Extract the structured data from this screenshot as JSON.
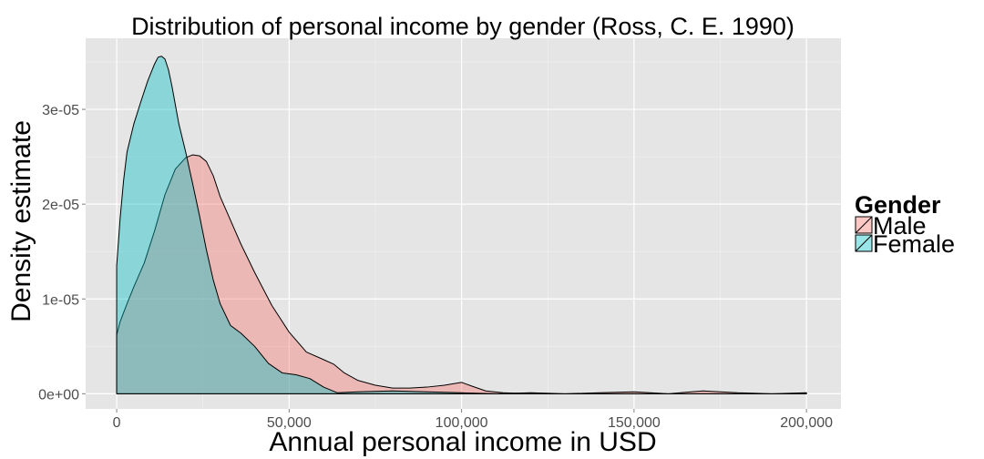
{
  "chart_data": {
    "type": "area",
    "title": "Distribution of personal income by gender (Ross, C. E. 1990)",
    "xlabel": "Annual personal income in USD",
    "ylabel": "Density estimate",
    "xlim": [
      -9000,
      210000
    ],
    "ylim": [
      -1.6e-06,
      3.75e-05
    ],
    "x_ticks": [
      0,
      50000,
      100000,
      150000,
      200000
    ],
    "x_tick_labels": [
      "0",
      "50,000",
      "100,000",
      "150,000",
      "200,000"
    ],
    "y_ticks": [
      0,
      1e-05,
      2e-05,
      3e-05
    ],
    "y_tick_labels": [
      "0e+00",
      "1e-05",
      "2e-05",
      "3e-05"
    ],
    "grid": true,
    "background": "#e5e5e5",
    "grid_color": "#ffffff",
    "legend": {
      "title": "Gender",
      "position": "right",
      "entries": [
        "Male",
        "Female"
      ]
    },
    "series": [
      {
        "name": "Male",
        "color": "#f8766d",
        "opacity": 0.4,
        "x": [
          0,
          1000,
          3000,
          5000,
          8000,
          11000,
          14000,
          17000,
          20000,
          22000,
          24000,
          26000,
          28000,
          30000,
          33000,
          36000,
          40000,
          45000,
          50000,
          55000,
          60000,
          63000,
          66000,
          70000,
          75000,
          80000,
          85000,
          90000,
          95000,
          100000,
          103000,
          107000,
          112000,
          120000,
          130000,
          140000,
          150000,
          160000,
          170000,
          175000,
          180000,
          190000,
          200000
        ],
        "y": [
          6.2e-06,
          7.6e-06,
          9.5e-06,
          1.13e-05,
          1.38e-05,
          1.72e-05,
          2.1e-05,
          2.37e-05,
          2.49e-05,
          2.52e-05,
          2.51e-05,
          2.45e-05,
          2.3e-05,
          2.08e-05,
          1.83e-05,
          1.58e-05,
          1.28e-05,
          9.3e-06,
          6.5e-06,
          4.4e-06,
          3.6e-06,
          3.1e-06,
          2.2e-06,
          1.4e-06,
          9e-07,
          6e-07,
          6e-07,
          7e-07,
          9e-07,
          1.2e-06,
          8e-07,
          3e-07,
          1e-07,
          0,
          0,
          1e-07,
          2e-07,
          0,
          3e-07,
          2e-07,
          1e-07,
          0,
          1e-07
        ]
      },
      {
        "name": "Female",
        "color": "#00bfc4",
        "opacity": 0.4,
        "x": [
          0,
          1000,
          2000,
          3000,
          5000,
          7000,
          9000,
          11000,
          12000,
          13000,
          14000,
          15000,
          16000,
          17000,
          18000,
          20000,
          22000,
          24000,
          26000,
          28000,
          30000,
          33000,
          36000,
          40000,
          44000,
          48000,
          52000,
          56000,
          60000,
          64000,
          70000,
          80000,
          90000,
          100000,
          110000,
          120000,
          130000,
          150000,
          170000,
          200000
        ],
        "y": [
          1.35e-05,
          1.85e-05,
          2.25e-05,
          2.55e-05,
          2.85e-05,
          3.08e-05,
          3.3e-05,
          3.48e-05,
          3.55e-05,
          3.56e-05,
          3.53e-05,
          3.42e-05,
          3.25e-05,
          3.05e-05,
          2.85e-05,
          2.55e-05,
          2.22e-05,
          1.88e-05,
          1.52e-05,
          1.2e-05,
          9.5e-06,
          7.2e-06,
          6.4e-06,
          5e-06,
          3.2e-06,
          2.2e-06,
          2e-06,
          1.6e-06,
          7e-07,
          1e-07,
          2e-07,
          3e-07,
          2e-07,
          1e-07,
          0,
          1e-07,
          0,
          0,
          0,
          0
        ]
      }
    ]
  }
}
